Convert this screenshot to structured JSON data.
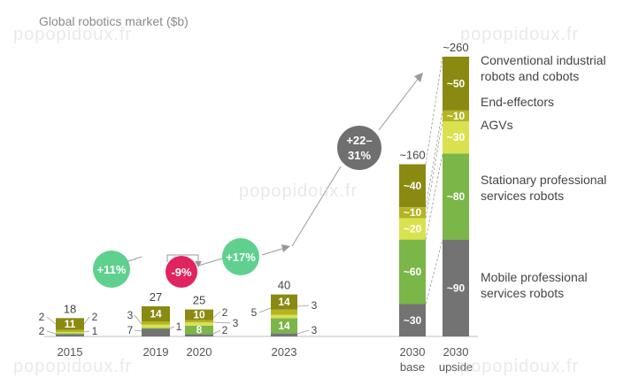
{
  "watermark": "popopidoux.fr",
  "chart_data": {
    "type": "bar",
    "stacked": true,
    "title": "Global robotics market ($b)",
    "categories": [
      "2015",
      "2019",
      "2020",
      "2023",
      "2030 base",
      "2030 upside"
    ],
    "category_lines": [
      [
        "2015"
      ],
      [
        "2019"
      ],
      [
        "2020"
      ],
      [
        "2023"
      ],
      [
        "2030",
        "base"
      ],
      [
        "2030",
        "upside"
      ]
    ],
    "series": [
      {
        "name": "Mobile professional services robots",
        "color": "#737373",
        "values": [
          2,
          7,
          2,
          3,
          30,
          90
        ]
      },
      {
        "name": "Stationary professional services robots",
        "color": "#7ab648",
        "values": [
          1,
          1,
          8,
          14,
          60,
          80
        ]
      },
      {
        "name": "AGVs",
        "color": "#d9e24e",
        "values": [
          1,
          3,
          3,
          3,
          20,
          30
        ]
      },
      {
        "name": "End-effectors",
        "color": "#b4b424",
        "values": [
          2,
          3,
          2,
          5,
          10,
          10
        ]
      },
      {
        "name": "Conventional industrial robots and cobots",
        "color": "#8a8a12",
        "values": [
          11,
          14,
          10,
          14,
          40,
          50
        ]
      }
    ],
    "value_labels": [
      [
        "2",
        "1",
        "",
        "2",
        "11"
      ],
      [
        "7",
        "1",
        "",
        "3",
        "14"
      ],
      [
        "2",
        "8",
        "3",
        "2",
        "10"
      ],
      [
        "3",
        "14",
        "3",
        "5",
        "14"
      ],
      [
        "~30",
        "~60",
        "~20",
        "~10",
        "~40"
      ],
      [
        "~90",
        "~80",
        "~30",
        "~10",
        "~50"
      ]
    ],
    "totals": [
      "18",
      "27",
      "25",
      "40",
      "~160",
      "~260"
    ],
    "growth_annotations": [
      {
        "label": "+11%",
        "color": "#5fd08e"
      },
      {
        "label": "-9%",
        "color": "#e0245e"
      },
      {
        "label": "+17%",
        "color": "#5fd08e"
      },
      {
        "label": "+22–31%",
        "color": "#6f6f6f"
      }
    ],
    "legend": [
      "Conventional industrial robots and cobots",
      "End-effectors",
      "AGVs",
      "Stationary professional services robots",
      "Mobile professional services robots"
    ]
  }
}
